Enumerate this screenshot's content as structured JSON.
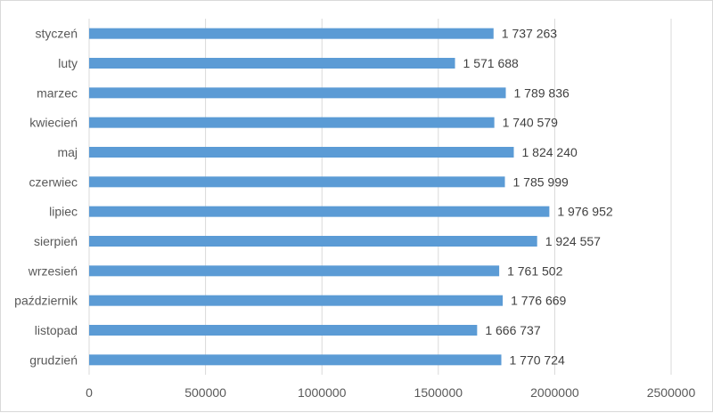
{
  "chart_data": {
    "type": "bar",
    "orientation": "horizontal",
    "categories": [
      "styczeń",
      "luty",
      "marzec",
      "kwiecień",
      "maj",
      "czerwiec",
      "lipiec",
      "sierpień",
      "wrzesień",
      "październik",
      "listopad",
      "grudzień"
    ],
    "values": [
      1737263,
      1571688,
      1789836,
      1740579,
      1824240,
      1785999,
      1976952,
      1924557,
      1761502,
      1776669,
      1666737,
      1770724
    ],
    "data_labels": [
      "1 737 263",
      "1 571 688",
      "1 789 836",
      "1 740 579",
      "1 824 240",
      "1 785 999",
      "1 976 952",
      "1 924 557",
      "1 761 502",
      "1 776 669",
      "1 666 737",
      "1 770 724"
    ],
    "x_ticks": [
      "0",
      "500000",
      "1000000",
      "1500000",
      "2000000",
      "2500000"
    ],
    "xlim": [
      0,
      2500000
    ],
    "grid": true,
    "bar_color": "#5b9bd5",
    "title": "",
    "xlabel": "",
    "ylabel": ""
  }
}
